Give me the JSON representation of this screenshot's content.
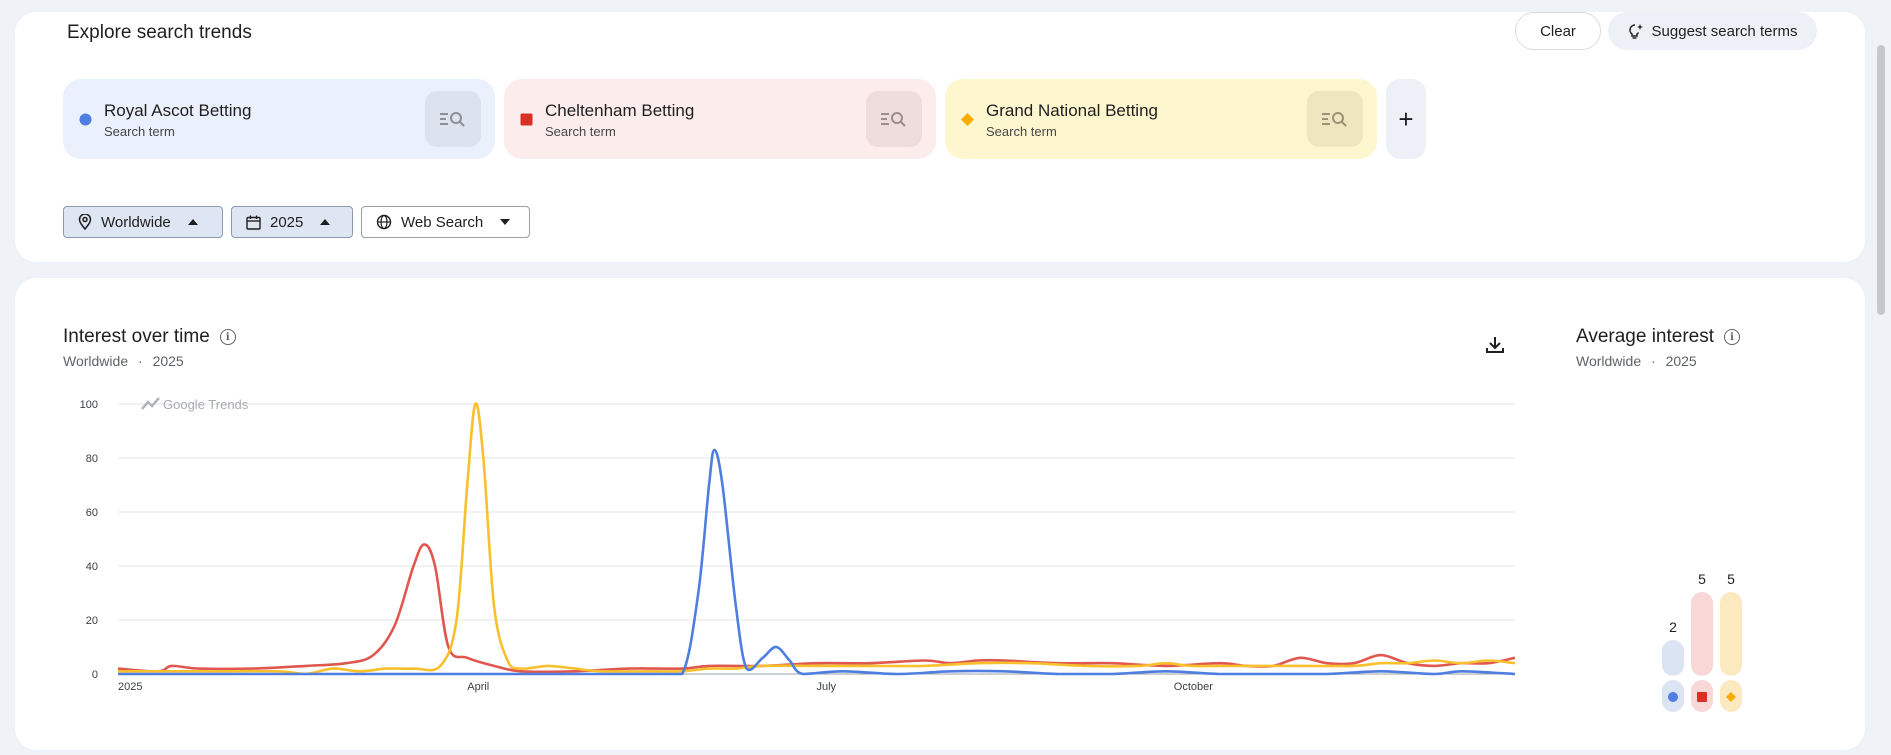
{
  "explore": {
    "title": "Explore search trends",
    "clear_label": "Clear",
    "suggest_label": "Suggest search terms",
    "add_label": "+"
  },
  "terms": [
    {
      "name": "Royal Ascot Betting",
      "type": "Search term",
      "color": "#4f7ee0",
      "bg": "#ebf1fc",
      "btn_bg": "#dce3ee",
      "marker": "circle"
    },
    {
      "name": "Cheltenham Betting",
      "type": "Search term",
      "color": "#d93025",
      "bg": "#fcecec",
      "btn_bg": "#efdcdc",
      "marker": "square"
    },
    {
      "name": "Grand National Betting",
      "type": "Search term",
      "color": "#f9ab00",
      "bg": "#fef6cf",
      "btn_bg": "#efe6bf",
      "marker": "diamond"
    }
  ],
  "filters": {
    "region": "Worldwide",
    "period": "2025",
    "property": "Web Search"
  },
  "interest": {
    "title": "Interest over time",
    "subtitle_region": "Worldwide",
    "subtitle_sep": "·",
    "subtitle_period": "2025",
    "watermark": "Google Trends"
  },
  "average": {
    "title": "Average interest",
    "subtitle_region": "Worldwide",
    "subtitle_sep": "·",
    "subtitle_period": "2025"
  },
  "chart_data": [
    {
      "type": "line",
      "title": "Interest over time",
      "x_ticks": [
        {
          "label": "2025",
          "week": 0
        },
        {
          "label": "April",
          "week": 13
        },
        {
          "label": "July",
          "week": 26
        },
        {
          "label": "October",
          "week": 39.3
        }
      ],
      "y_ticks": [
        0,
        20,
        40,
        60,
        80,
        100
      ],
      "ylim": [
        0,
        100
      ],
      "x_max_week": 52,
      "grid": true,
      "series": [
        {
          "name": "Royal Ascot Betting",
          "color": "#4f7ee0",
          "points": [
            [
              0,
              0
            ],
            [
              2,
              0
            ],
            [
              4,
              0
            ],
            [
              6,
              0
            ],
            [
              8,
              0
            ],
            [
              10,
              0
            ],
            [
              12,
              0
            ],
            [
              14,
              0
            ],
            [
              16,
              0
            ],
            [
              18,
              0
            ],
            [
              20,
              0
            ],
            [
              21,
              0
            ],
            [
              21.6,
              30
            ],
            [
              22,
              70
            ],
            [
              22.2,
              83
            ],
            [
              22.5,
              70
            ],
            [
              23,
              25
            ],
            [
              23.4,
              2
            ],
            [
              24,
              6
            ],
            [
              24.5,
              10
            ],
            [
              25,
              5
            ],
            [
              25.5,
              0
            ],
            [
              27,
              1
            ],
            [
              29,
              0
            ],
            [
              31,
              1
            ],
            [
              33,
              1
            ],
            [
              35,
              0
            ],
            [
              37,
              0
            ],
            [
              39,
              1
            ],
            [
              41,
              0
            ],
            [
              43,
              0
            ],
            [
              45,
              0
            ],
            [
              47,
              1
            ],
            [
              49,
              0
            ],
            [
              50,
              1
            ],
            [
              52,
              0
            ]
          ]
        },
        {
          "name": "Cheltenham Betting",
          "color": "#e0574f",
          "points": [
            [
              0,
              2
            ],
            [
              1.5,
              1
            ],
            [
              2,
              3
            ],
            [
              3,
              2
            ],
            [
              5,
              2
            ],
            [
              7,
              3
            ],
            [
              8.5,
              4
            ],
            [
              9.5,
              7
            ],
            [
              10.3,
              18
            ],
            [
              11,
              40
            ],
            [
              11.4,
              48
            ],
            [
              11.8,
              40
            ],
            [
              12.3,
              10
            ],
            [
              13,
              6
            ],
            [
              14,
              3
            ],
            [
              15,
              1
            ],
            [
              17,
              1
            ],
            [
              19,
              2
            ],
            [
              21,
              2
            ],
            [
              22,
              3
            ],
            [
              24,
              3
            ],
            [
              26,
              4
            ],
            [
              28,
              4
            ],
            [
              30,
              5
            ],
            [
              31,
              4
            ],
            [
              32,
              5
            ],
            [
              33,
              5
            ],
            [
              35,
              4
            ],
            [
              37,
              4
            ],
            [
              39,
              3
            ],
            [
              41,
              4
            ],
            [
              42,
              3
            ],
            [
              43,
              3
            ],
            [
              44,
              6
            ],
            [
              45,
              4
            ],
            [
              46,
              4
            ],
            [
              47,
              7
            ],
            [
              48,
              4
            ],
            [
              49,
              3
            ],
            [
              50,
              4
            ],
            [
              51,
              4
            ],
            [
              52,
              6
            ]
          ]
        },
        {
          "name": "Grand National Betting",
          "color": "#f9c02e",
          "points": [
            [
              0,
              1
            ],
            [
              2,
              1
            ],
            [
              4,
              1
            ],
            [
              6,
              1
            ],
            [
              7,
              0
            ],
            [
              8,
              2
            ],
            [
              9,
              1
            ],
            [
              10,
              2
            ],
            [
              11,
              2
            ],
            [
              12,
              3
            ],
            [
              12.6,
              20
            ],
            [
              13,
              70
            ],
            [
              13.3,
              100
            ],
            [
              13.6,
              80
            ],
            [
              14,
              25
            ],
            [
              14.5,
              5
            ],
            [
              15,
              2
            ],
            [
              16,
              3
            ],
            [
              17,
              2
            ],
            [
              18,
              1
            ],
            [
              20,
              1
            ],
            [
              21,
              1
            ],
            [
              22,
              2
            ],
            [
              23,
              2
            ],
            [
              24,
              3
            ],
            [
              26,
              3
            ],
            [
              28,
              3
            ],
            [
              30,
              3
            ],
            [
              32,
              4
            ],
            [
              34,
              4
            ],
            [
              36,
              3
            ],
            [
              38,
              3
            ],
            [
              39,
              4
            ],
            [
              40,
              3
            ],
            [
              42,
              3
            ],
            [
              44,
              3
            ],
            [
              46,
              3
            ],
            [
              47,
              4
            ],
            [
              48,
              4
            ],
            [
              49,
              5
            ],
            [
              50,
              4
            ],
            [
              51,
              5
            ],
            [
              52,
              4
            ]
          ]
        }
      ]
    },
    {
      "type": "bar",
      "title": "Average interest",
      "categories": [
        "Royal Ascot Betting",
        "Cheltenham Betting",
        "Grand National Betting"
      ],
      "values": [
        2,
        5,
        5
      ],
      "colors": [
        "#4f7ee0",
        "#d93025",
        "#f9ab00"
      ]
    }
  ]
}
